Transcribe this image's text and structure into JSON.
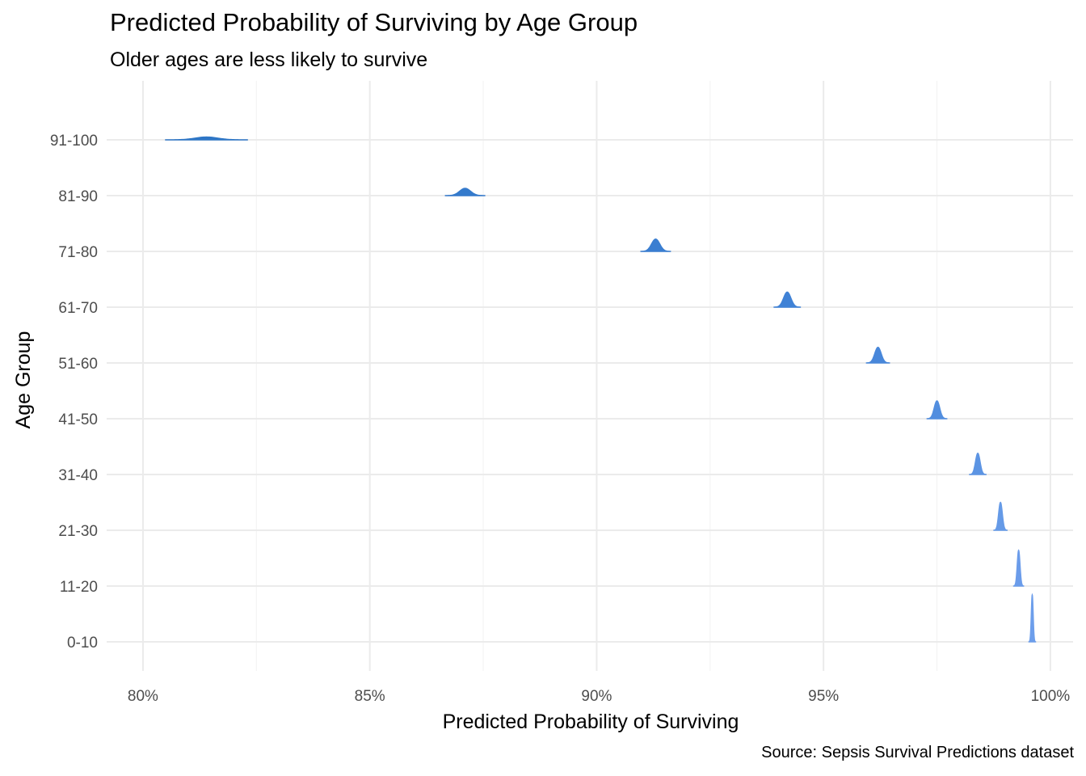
{
  "chart_data": {
    "type": "ridgeline-density",
    "title": "Predicted Probability of Surviving by Age Group",
    "subtitle": "Older ages are less likely to survive",
    "xlabel": "Predicted Probability of Surviving",
    "ylabel": "Age Group",
    "caption": "Source: Sepsis Survival Predictions dataset",
    "x_unit": "percent",
    "xlim": [
      79.2,
      100.5
    ],
    "x_ticks": [
      80,
      85,
      90,
      95,
      100
    ],
    "x_tick_labels": [
      "80%",
      "85%",
      "90%",
      "95%",
      "100%"
    ],
    "grid": true,
    "categories": [
      "0-10",
      "11-20",
      "21-30",
      "31-40",
      "41-50",
      "51-60",
      "61-70",
      "71-80",
      "81-90",
      "91-100"
    ],
    "distributions": [
      {
        "group": "0-10",
        "center": 99.6,
        "spread": 0.02,
        "peak": 0.84,
        "color": "#6d9eeb"
      },
      {
        "group": "11-20",
        "center": 99.3,
        "spread": 0.03,
        "peak": 0.64,
        "color": "#6b9cea"
      },
      {
        "group": "21-30",
        "center": 98.9,
        "spread": 0.04,
        "peak": 0.5,
        "color": "#659ae7"
      },
      {
        "group": "31-40",
        "center": 98.4,
        "spread": 0.05,
        "peak": 0.38,
        "color": "#5c94e3"
      },
      {
        "group": "41-50",
        "center": 97.5,
        "spread": 0.06,
        "peak": 0.32,
        "color": "#528edf"
      },
      {
        "group": "51-60",
        "center": 96.2,
        "spread": 0.07,
        "peak": 0.28,
        "color": "#4887da"
      },
      {
        "group": "61-70",
        "center": 94.2,
        "spread": 0.08,
        "peak": 0.27,
        "color": "#4082d6"
      },
      {
        "group": "71-80",
        "center": 91.3,
        "spread": 0.09,
        "peak": 0.22,
        "color": "#3a7ed1"
      },
      {
        "group": "81-90",
        "center": 87.1,
        "spread": 0.12,
        "peak": 0.13,
        "color": "#347acc"
      },
      {
        "group": "91-100",
        "center": 81.4,
        "spread": 0.25,
        "peak": 0.05,
        "color": "#2e76c6"
      }
    ]
  }
}
